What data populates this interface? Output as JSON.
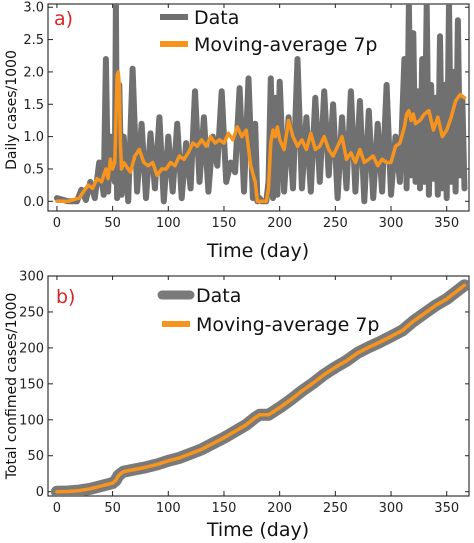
{
  "chart_data": [
    {
      "type": "line",
      "panel_label": "a)",
      "xlabel": "Time (day)",
      "ylabel": "Daily cases/1000",
      "xlim": [
        -8,
        370
      ],
      "ylim": [
        -0.15,
        3.05
      ],
      "xticks": [
        "0",
        "50",
        "100",
        "150",
        "200",
        "250",
        "300",
        "350"
      ],
      "yticks": [
        "0.0",
        "0.5",
        "1.0",
        "1.5",
        "2.0",
        "2.5",
        "3.0"
      ],
      "xtick_values": [
        0,
        50,
        100,
        150,
        200,
        250,
        300,
        350
      ],
      "ytick_values": [
        0,
        0.5,
        1.0,
        1.5,
        2.0,
        2.5,
        3.0
      ],
      "legend_position": "top-center",
      "series": [
        {
          "name": "Data",
          "color": "#707070",
          "x": [
            0,
            10,
            18,
            22,
            26,
            30,
            34,
            38,
            42,
            44,
            46,
            48,
            50,
            52,
            53,
            54,
            56,
            58,
            60,
            64,
            68,
            72,
            76,
            80,
            84,
            88,
            92,
            96,
            100,
            104,
            108,
            112,
            116,
            120,
            124,
            128,
            132,
            136,
            140,
            144,
            148,
            152,
            156,
            160,
            164,
            168,
            172,
            176,
            178,
            180,
            182,
            184,
            186,
            188,
            190,
            192,
            194,
            196,
            198,
            200,
            204,
            208,
            212,
            216,
            220,
            224,
            228,
            232,
            236,
            240,
            244,
            248,
            252,
            256,
            260,
            264,
            268,
            272,
            276,
            280,
            284,
            288,
            292,
            296,
            300,
            304,
            308,
            312,
            314,
            316,
            318,
            320,
            322,
            324,
            326,
            328,
            330,
            332,
            334,
            336,
            338,
            340,
            342,
            344,
            346,
            348,
            350,
            352,
            354,
            356,
            358,
            360,
            362,
            364,
            366
          ],
          "y": [
            0.05,
            0.0,
            0.0,
            0.18,
            0.02,
            0.3,
            0.05,
            0.6,
            0.1,
            2.2,
            0.15,
            1.0,
            0.6,
            0.3,
            3.05,
            0.05,
            1.8,
            0.1,
            1.0,
            0.0,
            2.05,
            0.15,
            1.2,
            0.05,
            1.05,
            0.2,
            1.3,
            0.0,
            1.0,
            0.15,
            1.2,
            0.05,
            0.9,
            0.2,
            1.7,
            0.3,
            1.3,
            0.15,
            1.0,
            0.55,
            1.7,
            0.3,
            0.6,
            0.45,
            1.75,
            0.15,
            1.9,
            0.05,
            1.2,
            0.0,
            0.05,
            0.0,
            0.0,
            0.0,
            0.3,
            1.9,
            0.05,
            1.6,
            0.1,
            1.85,
            0.15,
            1.3,
            0.2,
            2.2,
            0.2,
            1.3,
            0.15,
            1.6,
            0.3,
            1.7,
            0.4,
            1.5,
            0.05,
            1.3,
            0.2,
            1.7,
            0.15,
            1.55,
            0.0,
            1.4,
            0.05,
            1.2,
            0.15,
            1.8,
            0.1,
            1.0,
            0.3,
            2.2,
            0.2,
            3.05,
            0.4,
            2.6,
            0.3,
            1.7,
            0.2,
            2.2,
            0.3,
            3.05,
            0.1,
            1.8,
            0.35,
            1.6,
            0.1,
            2.55,
            0.2,
            1.8,
            0.05,
            3.05,
            0.3,
            2.0,
            0.15,
            2.8,
            0.4,
            1.6,
            0.2
          ],
          "stroke_width": 6
        },
        {
          "name": "Moving-average 7p",
          "color": "#f7941d",
          "x": [
            0,
            10,
            20,
            24,
            28,
            32,
            36,
            40,
            44,
            46,
            48,
            50,
            52,
            54,
            55,
            56,
            57,
            58,
            60,
            62,
            66,
            70,
            74,
            78,
            82,
            86,
            90,
            94,
            98,
            102,
            106,
            110,
            114,
            118,
            122,
            126,
            130,
            134,
            138,
            142,
            146,
            150,
            154,
            158,
            162,
            166,
            170,
            174,
            178,
            180,
            182,
            184,
            186,
            188,
            190,
            192,
            194,
            196,
            198,
            200,
            204,
            208,
            212,
            216,
            220,
            224,
            228,
            232,
            236,
            240,
            244,
            248,
            252,
            256,
            260,
            264,
            268,
            272,
            276,
            280,
            284,
            288,
            292,
            296,
            300,
            304,
            308,
            312,
            314,
            316,
            318,
            320,
            322,
            326,
            330,
            334,
            338,
            342,
            346,
            350,
            354,
            358,
            362,
            366
          ],
          "y": [
            0.0,
            0.0,
            0.05,
            0.15,
            0.25,
            0.2,
            0.35,
            0.3,
            0.5,
            0.35,
            0.65,
            0.5,
            0.6,
            1.95,
            2.0,
            1.8,
            0.9,
            0.5,
            0.6,
            0.55,
            0.45,
            0.7,
            0.8,
            0.6,
            0.55,
            0.6,
            0.4,
            0.5,
            0.5,
            0.6,
            0.55,
            0.7,
            0.65,
            0.75,
            0.9,
            0.85,
            0.95,
            0.85,
            1.0,
            0.9,
            0.95,
            0.9,
            1.05,
            0.95,
            1.15,
            1.0,
            1.1,
            0.55,
            0.3,
            0.0,
            0.0,
            0.0,
            0.0,
            0.0,
            0.2,
            0.9,
            1.1,
            1.0,
            1.15,
            0.95,
            0.8,
            1.25,
            1.0,
            0.85,
            0.95,
            0.8,
            1.05,
            0.8,
            0.85,
            1.0,
            0.8,
            0.7,
            0.85,
            1.0,
            0.65,
            0.75,
            0.6,
            0.8,
            0.6,
            0.65,
            0.7,
            0.55,
            0.65,
            0.6,
            0.6,
            0.85,
            0.9,
            1.15,
            1.35,
            1.4,
            1.25,
            1.35,
            1.2,
            1.25,
            1.35,
            1.4,
            1.1,
            1.3,
            1.0,
            1.1,
            1.3,
            1.55,
            1.65,
            1.6
          ],
          "stroke_width": 3.5
        }
      ]
    },
    {
      "type": "line",
      "panel_label": "b)",
      "xlabel": "Time (day)",
      "ylabel": "Total confimed cases/1000",
      "xlim": [
        -8,
        370
      ],
      "ylim": [
        -6,
        300
      ],
      "xticks": [
        "0",
        "50",
        "100",
        "150",
        "200",
        "250",
        "300",
        "350"
      ],
      "yticks": [
        "0",
        "50",
        "100",
        "150",
        "200",
        "250",
        "300"
      ],
      "xtick_values": [
        0,
        50,
        100,
        150,
        200,
        250,
        300,
        350
      ],
      "ytick_values": [
        0,
        50,
        100,
        150,
        200,
        250,
        300
      ],
      "legend_position": "top-center",
      "series": [
        {
          "name": "Data",
          "color": "#7a7a7a",
          "x": [
            0,
            10,
            20,
            30,
            40,
            50,
            53,
            55,
            58,
            60,
            70,
            80,
            90,
            100,
            110,
            120,
            130,
            140,
            150,
            160,
            170,
            178,
            182,
            186,
            190,
            200,
            210,
            220,
            230,
            240,
            250,
            260,
            270,
            280,
            290,
            300,
            310,
            320,
            330,
            340,
            350,
            360,
            366
          ],
          "y": [
            0,
            0.3,
            1.5,
            4,
            8,
            12,
            16,
            22,
            26,
            28,
            31,
            34,
            38,
            43,
            47,
            53,
            59,
            67,
            75,
            84,
            93,
            103,
            107,
            107,
            107,
            117,
            128,
            140,
            151,
            163,
            173,
            182,
            193,
            201,
            208,
            216,
            224,
            237,
            248,
            259,
            268,
            280,
            287
          ],
          "stroke_width": 12
        },
        {
          "name": "Moving-average 7p",
          "color": "#f7941d",
          "x": [
            0,
            10,
            20,
            30,
            40,
            50,
            53,
            55,
            58,
            60,
            70,
            80,
            90,
            100,
            110,
            120,
            130,
            140,
            150,
            160,
            170,
            178,
            182,
            186,
            190,
            200,
            210,
            220,
            230,
            240,
            250,
            260,
            270,
            280,
            290,
            300,
            310,
            320,
            330,
            340,
            350,
            360,
            366
          ],
          "y": [
            0,
            0.3,
            1.5,
            4,
            8,
            12,
            16,
            22,
            26,
            28,
            31,
            34,
            38,
            43,
            47,
            53,
            59,
            67,
            75,
            84,
            93,
            103,
            107,
            107,
            107,
            117,
            128,
            140,
            151,
            163,
            173,
            182,
            193,
            201,
            208,
            216,
            224,
            237,
            248,
            259,
            268,
            280,
            287
          ],
          "stroke_width": 3.5
        }
      ]
    }
  ]
}
